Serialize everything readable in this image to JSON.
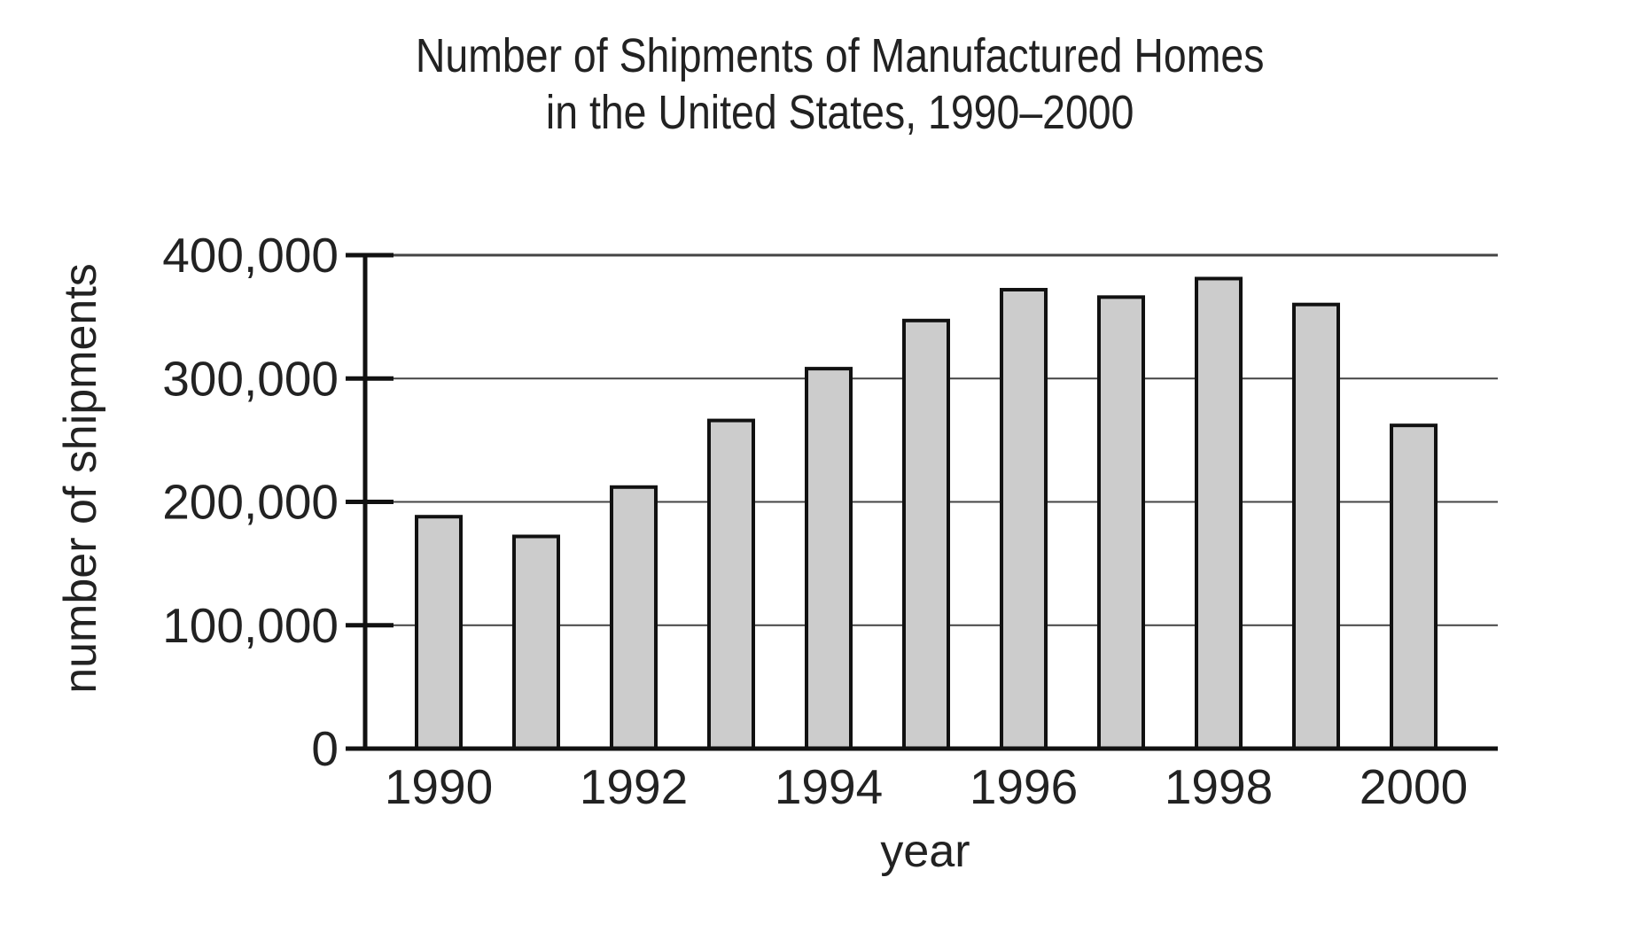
{
  "chart_data": {
    "type": "bar",
    "title": "Number of Shipments of Manufactured Homes",
    "subtitle": "in the United States, 1990–2000",
    "xlabel": "year",
    "ylabel": "number of shipments",
    "categories": [
      "1990",
      "1991",
      "1992",
      "1993",
      "1994",
      "1995",
      "1996",
      "1997",
      "1998",
      "1999",
      "2000"
    ],
    "values": [
      188000,
      172000,
      212000,
      266000,
      308000,
      347000,
      372000,
      366000,
      381000,
      360000,
      262000
    ],
    "x_tick_labels": [
      "1990",
      "1992",
      "1994",
      "1996",
      "1998",
      "2000"
    ],
    "y_tick_labels": [
      "0",
      "100,000",
      "200,000",
      "300,000",
      "400,000"
    ],
    "ylim": [
      0,
      400000
    ],
    "y_ticks": [
      0,
      100000,
      200000,
      300000,
      400000
    ],
    "grid": true,
    "legend": "none",
    "colors": {
      "bar_fill": "#cccccc",
      "bar_stroke": "#111111",
      "grid": "#444444"
    }
  }
}
